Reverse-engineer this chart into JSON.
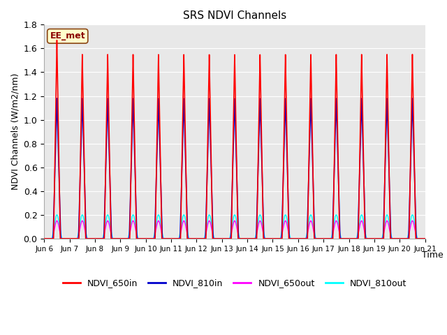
{
  "title": "SRS NDVI Channels",
  "xlabel": "Time",
  "ylabel": "NDVI Channels (W/m2/nm)",
  "xlim_start": 0,
  "xlim_end": 15,
  "ylim": [
    0.0,
    1.8
  ],
  "yticks": [
    0.0,
    0.2,
    0.4,
    0.6,
    0.8,
    1.0,
    1.2,
    1.4,
    1.6,
    1.8
  ],
  "xtick_labels": [
    "Jun 6",
    "Jun 7",
    "Jun 8",
    "Jun 9",
    "Jun 10",
    "Jun 11",
    "Jun 12",
    "Jun 13",
    "Jun 14",
    "Jun 15",
    "Jun 16",
    "Jun 17",
    "Jun 18",
    "Jun 19",
    "Jun 20",
    "Jun 21"
  ],
  "axes_bg": "#e8e8e8",
  "grid_color": "white",
  "annotation_text": "EE_met",
  "annotation_color": "#8b0000",
  "annotation_bg": "#ffffcc",
  "series": {
    "NDVI_650in": {
      "color": "#ff0000",
      "linewidth": 1.2
    },
    "NDVI_810in": {
      "color": "#0000cc",
      "linewidth": 1.2
    },
    "NDVI_650out": {
      "color": "#ff00ff",
      "linewidth": 1.0
    },
    "NDVI_810out": {
      "color": "#00ffff",
      "linewidth": 1.0
    }
  }
}
